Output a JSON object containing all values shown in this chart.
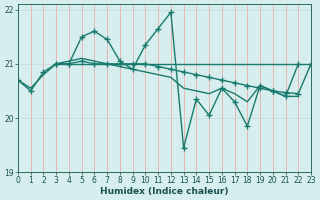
{
  "lines": [
    {
      "x": [
        0,
        1,
        2,
        3,
        4,
        5,
        6,
        7,
        8,
        9,
        10,
        11,
        12,
        13,
        14,
        15,
        16,
        17,
        18,
        19,
        20,
        21,
        22
      ],
      "y": [
        20.7,
        20.5,
        20.85,
        21.0,
        21.0,
        21.5,
        21.6,
        21.45,
        21.05,
        20.9,
        21.35,
        21.65,
        21.95,
        19.45,
        20.35,
        20.05,
        20.55,
        20.3,
        19.85,
        20.6,
        20.5,
        20.4,
        21.0
      ],
      "color": "#1a7a6e",
      "marker": "+",
      "markersize": 4,
      "linewidth": 1.0
    },
    {
      "x": [
        3,
        4,
        5,
        6,
        7,
        8,
        9,
        10,
        11,
        12,
        13,
        14,
        15,
        16,
        17,
        18,
        19,
        20,
        21,
        22,
        23
      ],
      "y": [
        21.0,
        21.0,
        21.0,
        21.0,
        21.0,
        21.0,
        21.0,
        21.0,
        21.0,
        21.0,
        21.0,
        21.0,
        21.0,
        21.0,
        21.0,
        21.0,
        21.0,
        21.0,
        21.0,
        21.0,
        21.0
      ],
      "color": "#1a7a6e",
      "marker": null,
      "markersize": 0,
      "linewidth": 1.0
    },
    {
      "x": [
        3,
        4,
        5,
        6,
        7,
        8,
        9,
        10,
        11,
        12,
        13,
        14,
        15,
        16,
        17,
        18,
        19,
        20,
        21,
        22,
        23
      ],
      "y": [
        21.0,
        21.0,
        21.05,
        21.0,
        21.0,
        21.0,
        21.0,
        21.0,
        20.95,
        20.9,
        20.85,
        20.8,
        20.75,
        20.7,
        20.65,
        20.6,
        20.55,
        20.5,
        20.47,
        20.45,
        21.0
      ],
      "color": "#1a7a6e",
      "marker": "+",
      "markersize": 4,
      "linewidth": 1.0
    },
    {
      "x": [
        0,
        1,
        2,
        3,
        4,
        5,
        6,
        7,
        8,
        9,
        10,
        11,
        12,
        13,
        14,
        15,
        16,
        17,
        18,
        19,
        20,
        21,
        22,
        23
      ],
      "y": [
        20.7,
        20.55,
        20.8,
        21.0,
        21.05,
        21.1,
        21.05,
        21.0,
        20.95,
        20.9,
        20.85,
        20.8,
        20.75,
        20.55,
        20.5,
        20.45,
        20.55,
        20.45,
        20.3,
        20.6,
        20.5,
        20.4,
        20.4,
        null
      ],
      "color": "#1a7a6e",
      "marker": null,
      "markersize": 0,
      "linewidth": 1.0
    }
  ],
  "xlim": [
    0,
    23
  ],
  "ylim": [
    19.0,
    22.1
  ],
  "yticks": [
    19,
    20,
    21,
    22
  ],
  "xticks": [
    0,
    1,
    2,
    3,
    4,
    5,
    6,
    7,
    8,
    9,
    10,
    11,
    12,
    13,
    14,
    15,
    16,
    17,
    18,
    19,
    20,
    21,
    22,
    23
  ],
  "xlabel": "Humidex (Indice chaleur)",
  "bg_color": "#d6eeed",
  "grid_color_v": "#f0a0a0",
  "grid_color_h": "#c8d8d8",
  "axis_color": "#2a6a60",
  "tick_label_color": "#1a5050",
  "xlabel_color": "#1a5050",
  "tick_fontsize": 5.5,
  "xlabel_fontsize": 6.5
}
